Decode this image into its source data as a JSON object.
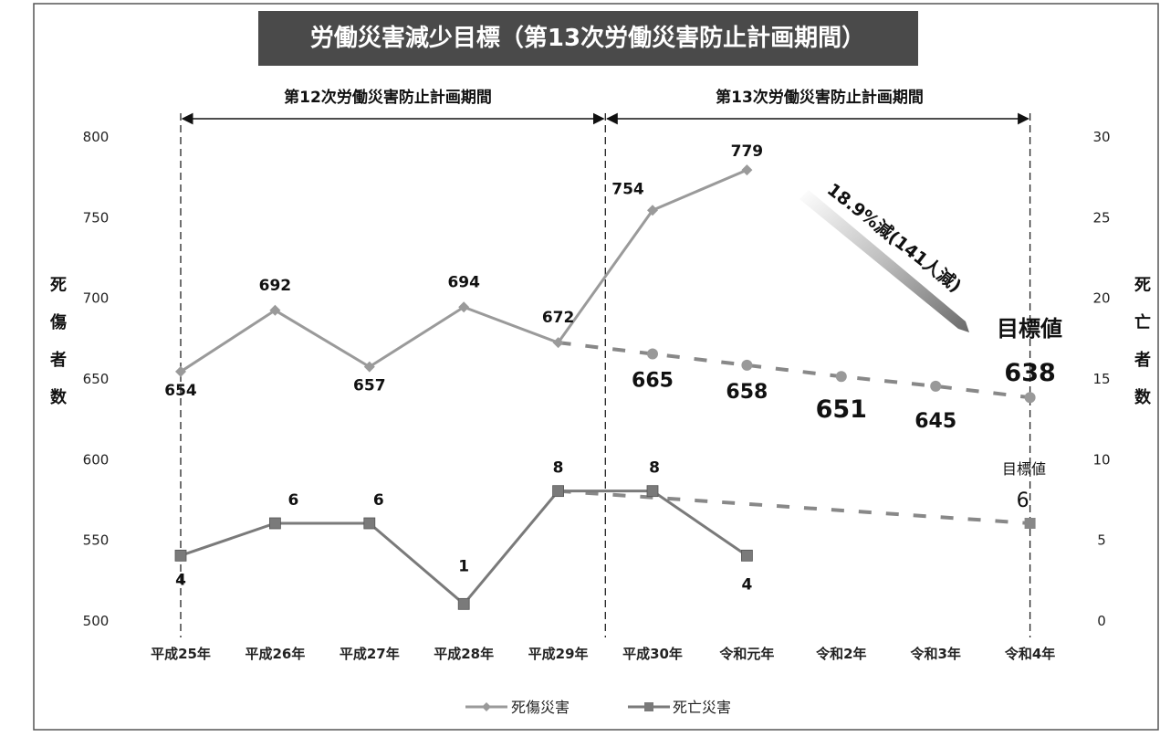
{
  "chart_data": {
    "type": "line",
    "title": "労働災害減少目標（第13次労働災害防止計画期間）",
    "categories": [
      "平成25年",
      "平成26年",
      "平成27年",
      "平成28年",
      "平成29年",
      "平成30年",
      "令和元年",
      "令和2年",
      "令和3年",
      "令和4年"
    ],
    "periods": [
      {
        "label": "第12次労働災害防止計画期間",
        "from": "平成25年",
        "to": "平成29年"
      },
      {
        "label": "第13次労働災害防止計画期間",
        "from": "平成30年",
        "to": "令和4年"
      }
    ],
    "left_axis": {
      "title": "死傷者数",
      "ylim": [
        500,
        800
      ],
      "ticks": [
        500,
        550,
        600,
        650,
        700,
        750,
        800
      ]
    },
    "right_axis": {
      "title": "死亡者数",
      "ylim": [
        0,
        30
      ],
      "ticks": [
        0,
        5,
        10,
        15,
        20,
        25,
        30
      ]
    },
    "series": [
      {
        "name": "死傷災害",
        "axis": "left",
        "color": "#9a9a9a",
        "values": [
          654,
          692,
          657,
          694,
          672,
          754,
          779,
          null,
          null,
          null
        ],
        "labels": [
          "654",
          "692",
          "657",
          "694",
          "672",
          "754",
          "779",
          "",
          "",
          ""
        ]
      },
      {
        "name": "死亡災害",
        "axis": "right",
        "color": "#7a7a7a",
        "values": [
          4,
          6,
          6,
          1,
          8,
          8,
          4,
          null,
          null,
          null
        ],
        "labels": [
          "4",
          "6",
          "6",
          "1",
          "8",
          "8",
          "4",
          "",
          "",
          ""
        ]
      }
    ],
    "targets": [
      {
        "series": "死傷災害",
        "axis": "left",
        "style": "dashed",
        "from": "平成29年",
        "from_value": 672,
        "points": [
          {
            "x": "平成30年",
            "value": 665,
            "label": "665"
          },
          {
            "x": "令和元年",
            "value": 658,
            "label": "658"
          },
          {
            "x": "令和2年",
            "value": 651,
            "label": "651"
          },
          {
            "x": "令和3年",
            "value": 645,
            "label": "645"
          },
          {
            "x": "令和4年",
            "value": 638,
            "label": "638"
          }
        ],
        "target_label": "目標値"
      },
      {
        "series": "死亡災害",
        "axis": "right",
        "style": "dashed",
        "from": "平成29年",
        "from_value": 8,
        "points": [
          {
            "x": "令和4年",
            "value": 6,
            "label": "6"
          }
        ],
        "target_label": "目標値"
      }
    ],
    "annotation": "18.9%減(141人減)",
    "legend": {
      "position": "bottom",
      "items": [
        "死傷災害",
        "死亡災害"
      ]
    },
    "grid": false
  }
}
